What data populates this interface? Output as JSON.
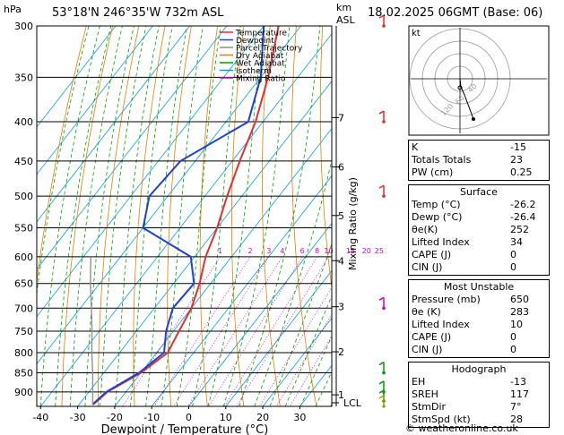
{
  "header": {
    "location": "53°18'N 246°35'W 732m ASL",
    "datetime": "18.02.2025 06GMT (Base: 06)",
    "left_unit": "hPa",
    "right_unit_top": "km",
    "right_unit_bottom": "ASL"
  },
  "legend": [
    {
      "label": "Temperature",
      "color": "#e03030"
    },
    {
      "label": "Dewpoint",
      "color": "#2040d0"
    },
    {
      "label": "Parcel Trajectory",
      "color": "#909090"
    },
    {
      "label": "Dry Adiabat",
      "color": "#e08000"
    },
    {
      "label": "Wet Adiabat",
      "color": "#00a000"
    },
    {
      "label": "Isotherm",
      "color": "#00a0e0"
    },
    {
      "label": "Mixing Ratio",
      "color": "#d000d0"
    }
  ],
  "chart_data": {
    "type": "line",
    "title": "",
    "xlabel": "Dewpoint / Temperature (°C)",
    "ylabel": "",
    "right_label": "Mixing Ratio (g/kg)",
    "x_ticks": [
      -40,
      -30,
      -20,
      -10,
      0,
      10,
      20,
      30
    ],
    "pressure_levels": [
      300,
      350,
      400,
      450,
      500,
      550,
      600,
      650,
      700,
      750,
      800,
      850,
      900
    ],
    "height_ticks": [
      {
        "label": "7",
        "p": 395
      },
      {
        "label": "6",
        "p": 458
      },
      {
        "label": "5",
        "p": 530
      },
      {
        "label": "4",
        "p": 607
      },
      {
        "label": "3",
        "p": 697
      },
      {
        "label": "2",
        "p": 798
      },
      {
        "label": "1",
        "p": 908
      },
      {
        "label": "LCL",
        "p": 930
      }
    ],
    "mixing_ratio_labels": [
      "1",
      "2",
      "3",
      "4",
      "6",
      "8",
      "10",
      "15",
      "20",
      "25"
    ],
    "mixing_ratio_values": [
      1,
      2,
      3,
      4,
      6,
      8,
      10,
      15,
      20,
      25
    ],
    "series": [
      {
        "name": "Temperature",
        "color": "#e03030",
        "points": [
          [
            935,
            -26.2
          ],
          [
            900,
            -25
          ],
          [
            850,
            -20
          ],
          [
            800,
            -17
          ],
          [
            750,
            -18.5
          ],
          [
            700,
            -20
          ],
          [
            650,
            -23
          ],
          [
            600,
            -27
          ],
          [
            550,
            -30
          ],
          [
            500,
            -34
          ],
          [
            450,
            -38
          ],
          [
            400,
            -42
          ],
          [
            350,
            -48
          ],
          [
            300,
            -56
          ]
        ]
      },
      {
        "name": "Dewpoint",
        "color": "#2040d0",
        "points": [
          [
            935,
            -26.4
          ],
          [
            900,
            -25.3
          ],
          [
            850,
            -20.5
          ],
          [
            800,
            -18
          ],
          [
            750,
            -22
          ],
          [
            700,
            -25
          ],
          [
            650,
            -24.5
          ],
          [
            600,
            -31
          ],
          [
            550,
            -50
          ],
          [
            500,
            -55
          ],
          [
            450,
            -54
          ],
          [
            400,
            -44
          ],
          [
            350,
            -50
          ],
          [
            300,
            -60
          ]
        ]
      },
      {
        "name": "Parcel Trajectory",
        "color": "#909090",
        "points": [
          [
            935,
            -26.3
          ],
          [
            900,
            -29
          ],
          [
            850,
            -33
          ],
          [
            800,
            -37.5
          ],
          [
            750,
            -42
          ],
          [
            700,
            -47
          ],
          [
            650,
            -52.5
          ],
          [
            600,
            -58
          ]
        ]
      }
    ]
  },
  "hodograph": {
    "label": "kt",
    "ring_labels": [
      "40",
      "60",
      "120"
    ]
  },
  "indices": [
    {
      "label": "K",
      "value": "-15"
    },
    {
      "label": "Totals Totals",
      "value": "23"
    },
    {
      "label": "PW (cm)",
      "value": "0.25"
    }
  ],
  "surface": {
    "title": "Surface",
    "rows": [
      {
        "label": "Temp (°C)",
        "value": "-26.2"
      },
      {
        "label": "Dewp (°C)",
        "value": "-26.4"
      },
      {
        "label": "θe(K)",
        "value": "252"
      },
      {
        "label": "Lifted Index",
        "value": "34"
      },
      {
        "label": "CAPE (J)",
        "value": "0"
      },
      {
        "label": "CIN (J)",
        "value": "0"
      }
    ]
  },
  "most_unstable": {
    "title": "Most Unstable",
    "rows": [
      {
        "label": "Pressure (mb)",
        "value": "650"
      },
      {
        "label": "θe (K)",
        "value": "283"
      },
      {
        "label": "Lifted Index",
        "value": "10"
      },
      {
        "label": "CAPE (J)",
        "value": "0"
      },
      {
        "label": "CIN (J)",
        "value": "0"
      }
    ]
  },
  "hodograph_table": {
    "title": "Hodograph",
    "rows": [
      {
        "label": "EH",
        "value": "-13"
      },
      {
        "label": "SREH",
        "value": "117"
      },
      {
        "label": "StmDir",
        "value": "7°"
      },
      {
        "label": "StmSpd (kt)",
        "value": "28"
      }
    ]
  },
  "credit": "© weatheronline.co.uk"
}
